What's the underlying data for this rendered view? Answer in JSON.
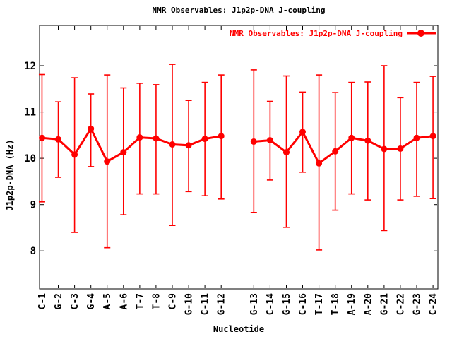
{
  "chart_data": {
    "type": "line",
    "title": "NMR Observables: J1p2p-DNA J-coupling",
    "legend_label": "NMR Observables: J1p2p-DNA J-coupling",
    "legend_position": "top-right-inside",
    "xlabel": "Nucleotide",
    "ylabel": "J1p2p-DNA (Hz)",
    "color": "#ff0000",
    "text_color": "#000000",
    "background": "#ffffff",
    "grid": false,
    "error_bars": true,
    "categories": [
      "C-1",
      "G-2",
      "C-3",
      "G-4",
      "A-5",
      "A-6",
      "T-7",
      "T-8",
      "C-9",
      "G-10",
      "C-11",
      "G-12",
      "G-13",
      "C-14",
      "G-15",
      "C-16",
      "T-17",
      "T-18",
      "A-19",
      "A-20",
      "G-21",
      "C-22",
      "G-23",
      "C-24"
    ],
    "slots": [
      1,
      2,
      3,
      4,
      5,
      6,
      7,
      8,
      9,
      10,
      11,
      12,
      14,
      15,
      16,
      17,
      18,
      19,
      20,
      21,
      22,
      23,
      24,
      25
    ],
    "values": [
      10.44,
      10.41,
      10.08,
      10.64,
      9.93,
      10.13,
      10.45,
      10.43,
      10.3,
      10.28,
      10.42,
      10.48,
      10.36,
      10.39,
      10.13,
      10.57,
      9.89,
      10.15,
      10.44,
      10.38,
      10.2,
      10.21,
      10.44,
      10.48
    ],
    "err_hi": [
      11.81,
      11.22,
      11.74,
      11.39,
      11.8,
      11.52,
      11.62,
      11.59,
      12.03,
      11.25,
      11.64,
      11.8,
      11.91,
      11.23,
      11.78,
      11.43,
      11.8,
      11.42,
      11.64,
      11.65,
      12.0,
      11.31,
      11.64,
      11.77
    ],
    "err_lo": [
      9.06,
      9.59,
      8.4,
      9.82,
      8.07,
      8.78,
      9.23,
      9.23,
      8.55,
      9.28,
      9.19,
      9.12,
      8.83,
      9.53,
      8.51,
      9.7,
      8.02,
      8.88,
      9.23,
      9.1,
      8.44,
      9.1,
      9.18,
      9.13
    ],
    "segments": [
      [
        0,
        11
      ],
      [
        12,
        23
      ]
    ],
    "yticks": [
      8,
      9,
      10,
      11,
      12
    ],
    "ylim": [
      7.18,
      12.87
    ],
    "xlim": [
      0.85,
      25.3
    ]
  }
}
